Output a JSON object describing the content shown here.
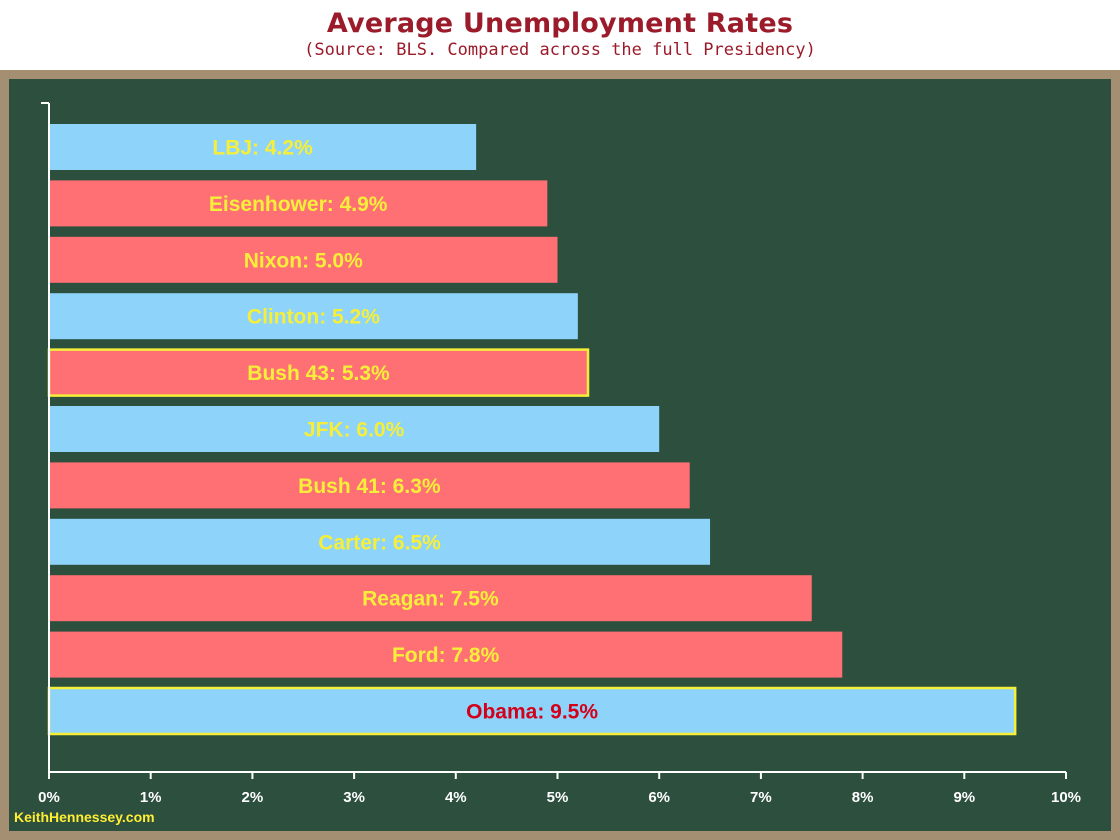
{
  "header": {
    "title": "Average Unemployment Rates",
    "subtitle": "(Source: BLS.  Compared across the full Presidency)"
  },
  "watermark": "KeithHennessey.com",
  "colors": {
    "democrat": "#8dd3fa",
    "republican": "#ff7074",
    "label_default": "#f6ef3a",
    "label_highlight": "#d4001a",
    "highlight_border": "#f6ef3a",
    "board": "#2c4f3e",
    "frame": "#a48f72"
  },
  "chart_data": {
    "type": "bar",
    "orientation": "horizontal",
    "title": "Average Unemployment Rates",
    "subtitle": "(Source: BLS.  Compared across the full Presidency)",
    "xlim": [
      0,
      10
    ],
    "x_ticks": [
      "0%",
      "1%",
      "2%",
      "3%",
      "4%",
      "5%",
      "6%",
      "7%",
      "8%",
      "9%",
      "10%"
    ],
    "grid": false,
    "bars": [
      {
        "label": "LBJ: 4.2%",
        "value": 4.2,
        "party": "democrat",
        "highlight": false,
        "label_style": "default"
      },
      {
        "label": "Eisenhower: 4.9%",
        "value": 4.9,
        "party": "republican",
        "highlight": false,
        "label_style": "default"
      },
      {
        "label": "Nixon: 5.0%",
        "value": 5.0,
        "party": "republican",
        "highlight": false,
        "label_style": "default"
      },
      {
        "label": "Clinton: 5.2%",
        "value": 5.2,
        "party": "democrat",
        "highlight": false,
        "label_style": "default"
      },
      {
        "label": "Bush 43: 5.3%",
        "value": 5.3,
        "party": "republican",
        "highlight": true,
        "label_style": "default"
      },
      {
        "label": "JFK: 6.0%",
        "value": 6.0,
        "party": "democrat",
        "highlight": false,
        "label_style": "default"
      },
      {
        "label": "Bush 41: 6.3%",
        "value": 6.3,
        "party": "republican",
        "highlight": false,
        "label_style": "default"
      },
      {
        "label": "Carter: 6.5%",
        "value": 6.5,
        "party": "democrat",
        "highlight": false,
        "label_style": "default"
      },
      {
        "label": "Reagan: 7.5%",
        "value": 7.5,
        "party": "republican",
        "highlight": false,
        "label_style": "default"
      },
      {
        "label": "Ford: 7.8%",
        "value": 7.8,
        "party": "republican",
        "highlight": false,
        "label_style": "default"
      },
      {
        "label": "Obama: 9.5%",
        "value": 9.5,
        "party": "democrat",
        "highlight": true,
        "label_style": "highlight"
      }
    ]
  }
}
